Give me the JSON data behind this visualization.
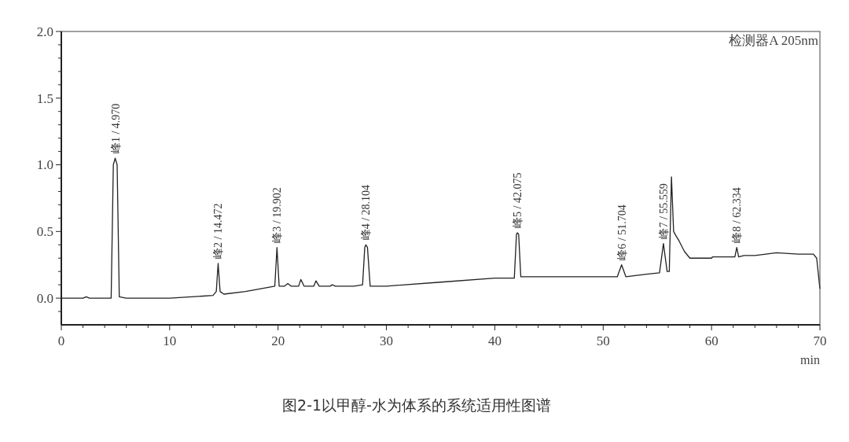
{
  "chart_data": {
    "type": "line",
    "xlabel": "min",
    "xlim": [
      0,
      70
    ],
    "ylim": [
      -0.2,
      2.0
    ],
    "xticks": [
      0,
      {
        "value": 2,
        "label": null
      },
      {
        "value": 4,
        "label": null
      },
      {
        "value": 6,
        "label": null
      },
      {
        "value": 8,
        "label": null
      },
      10,
      {
        "value": 12,
        "label": null
      },
      {
        "value": 14,
        "label": null
      },
      {
        "value": 16,
        "label": null
      },
      {
        "value": 18,
        "label": null
      },
      20,
      {
        "value": 22,
        "label": null
      },
      {
        "value": 24,
        "label": null
      },
      {
        "value": 26,
        "label": null
      },
      {
        "value": 28,
        "label": null
      },
      30,
      {
        "value": 32,
        "label": null
      },
      {
        "value": 34,
        "label": null
      },
      {
        "value": 36,
        "label": null
      },
      {
        "value": 38,
        "label": null
      },
      40,
      {
        "value": 42,
        "label": null
      },
      {
        "value": 44,
        "label": null
      },
      {
        "value": 46,
        "label": null
      },
      {
        "value": 48,
        "label": null
      },
      50,
      {
        "value": 52,
        "label": null
      },
      {
        "value": 54,
        "label": null
      },
      {
        "value": 56,
        "label": null
      },
      {
        "value": 58,
        "label": null
      },
      60,
      {
        "value": 62,
        "label": null
      },
      {
        "value": 64,
        "label": null
      },
      {
        "value": 66,
        "label": null
      },
      {
        "value": 68,
        "label": null
      },
      70
    ],
    "yticks": [
      {
        "value": -0.1,
        "label": null
      },
      {
        "value": 0,
        "label": "0.0"
      },
      {
        "value": 0.1,
        "label": null
      },
      {
        "value": 0.2,
        "label": null
      },
      {
        "value": 0.3,
        "label": null
      },
      {
        "value": 0.4,
        "label": null
      },
      {
        "value": 0.5,
        "label": "0.5"
      },
      {
        "value": 0.6,
        "label": null
      },
      {
        "value": 0.7,
        "label": null
      },
      {
        "value": 0.8,
        "label": null
      },
      {
        "value": 0.9,
        "label": null
      },
      {
        "value": 1,
        "label": "1.0"
      },
      {
        "value": 1.1,
        "label": null
      },
      {
        "value": 1.2,
        "label": null
      },
      {
        "value": 1.3,
        "label": null
      },
      {
        "value": 1.4,
        "label": null
      },
      {
        "value": 1.5,
        "label": "1.5"
      },
      {
        "value": 1.6,
        "label": null
      },
      {
        "value": 1.7,
        "label": null
      },
      {
        "value": 1.8,
        "label": null
      },
      {
        "value": 1.9,
        "label": null
      },
      {
        "value": 2,
        "label": "2.0"
      }
    ],
    "series": [
      {
        "color": "#222222",
        "line_style": "solid",
        "x": [
          0,
          2,
          2.3,
          2.6,
          4,
          4.6,
          4.8,
          4.97,
          5.15,
          5.35,
          6,
          8,
          10,
          12,
          14,
          14.3,
          14.47,
          14.65,
          15,
          17,
          19,
          19.7,
          19.9,
          20.1,
          20.6,
          20.9,
          21.2,
          21.9,
          22.1,
          22.4,
          23.3,
          23.5,
          23.8,
          24.8,
          25.0,
          25.3,
          27,
          27.8,
          28.0,
          28.1,
          28.25,
          28.5,
          30,
          35,
          40,
          41.8,
          42.0,
          42.08,
          42.2,
          42.4,
          46,
          50,
          51.3,
          51.7,
          52.1,
          54,
          55.2,
          55.56,
          55.9,
          56.1,
          56.3,
          56.5,
          56.7,
          57,
          57.5,
          58,
          59,
          60,
          60.1,
          62,
          62.15,
          62.33,
          62.5,
          63,
          64,
          65,
          66,
          68,
          69.4,
          69.7,
          70
        ],
        "values": [
          0,
          0,
          0.01,
          0,
          0,
          0,
          1.0,
          1.05,
          1.0,
          0.01,
          0,
          0,
          0,
          0.01,
          0.02,
          0.05,
          0.26,
          0.05,
          0.03,
          0.05,
          0.08,
          0.09,
          0.38,
          0.09,
          0.09,
          0.11,
          0.09,
          0.09,
          0.14,
          0.09,
          0.09,
          0.13,
          0.09,
          0.09,
          0.1,
          0.09,
          0.09,
          0.1,
          0.38,
          0.4,
          0.38,
          0.09,
          0.09,
          0.12,
          0.15,
          0.15,
          0.48,
          0.49,
          0.48,
          0.16,
          0.16,
          0.16,
          0.16,
          0.25,
          0.16,
          0.18,
          0.19,
          0.41,
          0.2,
          0.2,
          0.91,
          0.5,
          0.47,
          0.43,
          0.35,
          0.3,
          0.3,
          0.3,
          0.31,
          0.31,
          0.31,
          0.38,
          0.31,
          0.32,
          0.32,
          0.33,
          0.34,
          0.33,
          0.33,
          0.3,
          0.07
        ]
      }
    ],
    "annotations": [
      "检测器A 205nm",
      "图2-1以甲醇-水为体系的系统适用性图谱",
      {
        "text": "峰1 / 4.970",
        "x": 4.97,
        "y": 1.05
      },
      {
        "text": "峰2 / 14.472",
        "x": 14.47,
        "y": 0.26
      },
      {
        "text": "峰3 / 19.902",
        "x": 19.9,
        "y": 0.38
      },
      {
        "text": "峰4 / 28.104",
        "x": 28.1,
        "y": 0.4
      },
      {
        "text": "峰5 / 42.075",
        "x": 42.08,
        "y": 0.49
      },
      {
        "text": "峰6 / 51.704",
        "x": 51.7,
        "y": 0.25
      },
      {
        "text": "峰7 / 55.559",
        "x": 55.56,
        "y": 0.41
      },
      {
        "text": "峰8 / 62.334",
        "x": 62.33,
        "y": 0.38
      }
    ]
  }
}
